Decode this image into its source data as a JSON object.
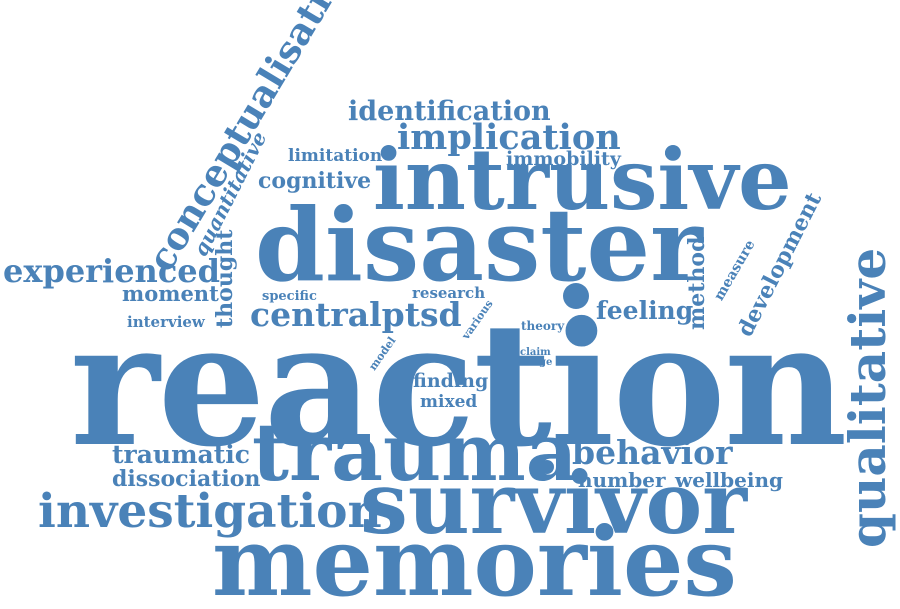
{
  "color": "#4a82b8",
  "words": {
    "reaction": "reaction",
    "memories": "memories",
    "disaster": "disaster",
    "trauma": "trauma",
    "survivor": "survivor",
    "intrusive": "intrusive",
    "qualitative": "qualitative",
    "investigation": "investigation",
    "conceptualisation": "conceptualisation",
    "experienced": "experienced",
    "implication": "implication",
    "identification": "identification",
    "centralptsd": "centralptsd",
    "behavior": "behavior",
    "traumatic": "traumatic",
    "dissociation": "dissociation",
    "cognitive": "cognitive",
    "moment": "moment",
    "feeling": "feeling",
    "development": "development",
    "method": "method",
    "thought": "thought",
    "quantitative": "quantitative",
    "limitation": "limitation",
    "immobility": "immobility",
    "number": "number",
    "wellbeing": "wellbeing",
    "finding": "finding",
    "mixed": "mixed",
    "interview": "interview",
    "research": "research",
    "specific": "specific",
    "various": "various",
    "model": "model",
    "theory": "theory",
    "claim": "claim",
    "range": "range",
    "measure": "measure"
  }
}
